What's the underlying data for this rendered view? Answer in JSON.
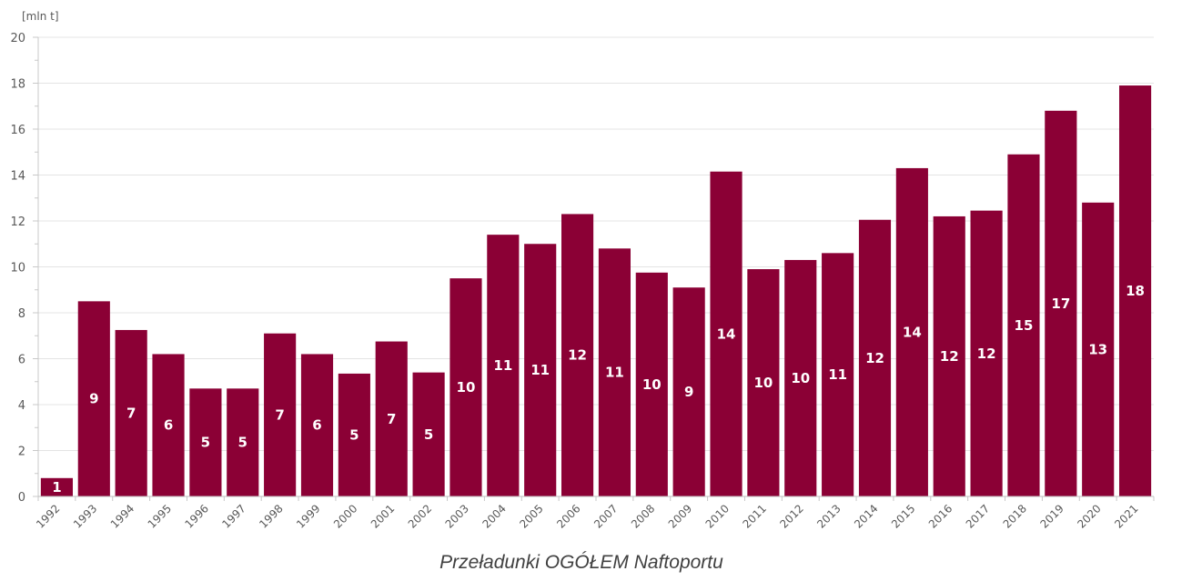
{
  "chart_data": {
    "type": "bar",
    "caption": "Przeładunki OGÓŁEM Naftoportu",
    "unit_label": "[mln t]",
    "ylim": [
      0,
      20
    ],
    "yticks": [
      0,
      2,
      4,
      6,
      8,
      10,
      12,
      14,
      16,
      18,
      20
    ],
    "grid": true,
    "bar_color": "#8B0035",
    "categories": [
      "1992",
      "1993",
      "1994",
      "1995",
      "1996",
      "1997",
      "1998",
      "1999",
      "2000",
      "2001",
      "2002",
      "2003",
      "2004",
      "2005",
      "2006",
      "2007",
      "2008",
      "2009",
      "2010",
      "2011",
      "2012",
      "2013",
      "2014",
      "2015",
      "2016",
      "2017",
      "2018",
      "2019",
      "2020",
      "2021"
    ],
    "values": [
      0.8,
      8.5,
      7.25,
      6.2,
      4.7,
      4.7,
      7.1,
      6.2,
      5.35,
      6.75,
      5.4,
      9.5,
      11.4,
      11.0,
      12.3,
      10.8,
      9.75,
      9.1,
      14.15,
      9.9,
      10.3,
      10.6,
      12.05,
      14.3,
      12.2,
      12.45,
      14.9,
      16.8,
      12.8,
      17.9
    ],
    "labels": [
      "1",
      "9",
      "7",
      "6",
      "5",
      "5",
      "7",
      "6",
      "5",
      "7",
      "5",
      "10",
      "11",
      "11",
      "12",
      "11",
      "10",
      "9",
      "14",
      "10",
      "10",
      "11",
      "12",
      "14",
      "12",
      "12",
      "15",
      "17",
      "13",
      "18"
    ]
  }
}
